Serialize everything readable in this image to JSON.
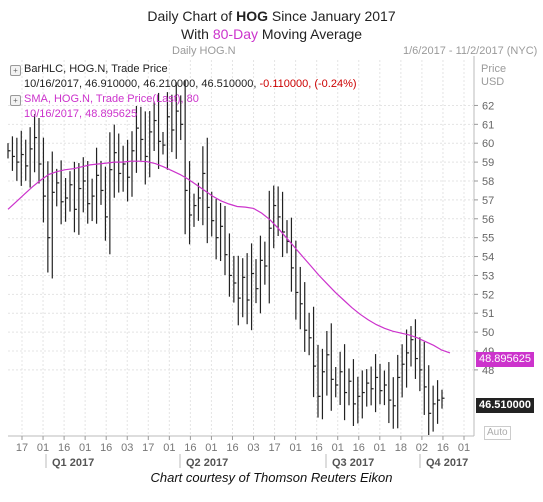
{
  "title": {
    "line1_prefix": "Daily Chart of ",
    "line1_ticker": "HOG",
    "line1_suffix": " Since January 2017",
    "line2_prefix": "With ",
    "line2_highlight": "80-Day",
    "line2_suffix": " Moving Average"
  },
  "header": {
    "left": "Daily HOG.N",
    "right": "1/6/2017 - 11/2/2017 (NYC)"
  },
  "legend": {
    "series1_label": "BarHLC, HOG.N, Trade Price",
    "series1_values_prefix": "10/16/2017, 46.910000, 46.210000, 46.510000, ",
    "series1_change": "-0.110000, (-0.24%)",
    "series2_label": "SMA, HOG.N, Trade Price(Last),  80",
    "series2_values": "10/16/2017, 48.895625"
  },
  "axis_title": {
    "line1": "Price",
    "line2": "USD"
  },
  "tags": {
    "sma_value": "48.895625",
    "last_price": "46.510000",
    "auto_label": "Auto"
  },
  "credit": "Chart courtesy of Thomson Reuters Eikon",
  "colors": {
    "price_bars": "#222222",
    "sma_line": "#cc33cc",
    "grid": "#d8d8d8",
    "negative_change": "#cc0000"
  },
  "chart_data": {
    "type": "line",
    "x_tick_labels": [
      "17",
      "01",
      "16",
      "01",
      "16",
      "03",
      "17",
      "01",
      "16",
      "01",
      "16",
      "03",
      "17",
      "01",
      "16",
      "01",
      "16",
      "01",
      "18",
      "02",
      "16",
      "01"
    ],
    "quarter_labels": [
      "Q1 2017",
      "Q2 2017",
      "Q3 2017",
      "Q4 2017"
    ],
    "y_tick_labels": [
      "48",
      "49",
      "50",
      "51",
      "52",
      "53",
      "54",
      "55",
      "56",
      "57",
      "58",
      "59",
      "60",
      "61",
      "62"
    ],
    "ylim": [
      44.5,
      62.5
    ],
    "grid": true,
    "series": [
      {
        "name": "BarHLC, HOG.N, Trade Price",
        "kind": "hlc_bars",
        "x_range": [
          0,
          434
        ],
        "close": [
          59.6,
          59.3,
          59.0,
          59.4,
          58.8,
          59.7,
          60.3,
          58.9,
          57.2,
          55.0,
          57.4,
          57.9,
          56.9,
          57.1,
          57.8,
          56.5,
          57.6,
          58.0,
          56.8,
          57.2,
          58.3,
          57.5,
          56.1,
          58.6,
          59.5,
          58.4,
          58.9,
          58.2,
          59.6,
          60.8,
          60.2,
          59.3,
          60.6,
          61.2,
          60.1,
          59.9,
          61.4,
          60.7,
          61.7,
          61.0,
          57.5,
          56.2,
          56.7,
          57.1,
          58.4,
          56.6,
          55.9,
          55.0,
          55.6,
          54.1,
          53.0,
          52.6,
          51.8,
          52.9,
          51.7,
          53.1,
          52.3,
          53.8,
          53.5,
          55.5,
          56.7,
          56.1,
          55.3,
          54.8,
          53.4,
          52.1,
          51.5,
          50.1,
          49.7,
          48.2,
          46.6,
          47.9,
          48.8,
          47.5,
          47.2,
          47.9,
          46.8,
          47.4,
          46.2,
          46.6,
          46.8,
          47.3,
          47.0,
          47.6,
          46.9,
          47.2,
          46.4,
          46.1,
          47.6,
          48.3,
          48.9,
          49.6,
          48.6,
          48.0,
          47.1,
          45.7,
          46.2,
          46.4,
          46.5
        ]
      },
      {
        "name": "SMA, HOG.N, Trade Price(Last),  80",
        "kind": "line",
        "x_range": [
          0,
          450
        ],
        "values": [
          56.5,
          56.9,
          57.3,
          57.7,
          58.05,
          58.35,
          58.5,
          58.6,
          58.65,
          58.75,
          58.85,
          58.9,
          58.95,
          59.0,
          59.0,
          59.05,
          59.05,
          59.02,
          58.92,
          58.75,
          58.55,
          58.35,
          58.1,
          57.8,
          57.5,
          57.2,
          56.95,
          56.78,
          56.65,
          56.62,
          56.55,
          56.3,
          55.95,
          55.5,
          55.0,
          54.5,
          54.0,
          53.5,
          53.0,
          52.55,
          52.1,
          51.7,
          51.3,
          50.95,
          50.65,
          50.4,
          50.2,
          50.05,
          49.95,
          49.85,
          49.7,
          49.5,
          49.3,
          49.05,
          48.9
        ]
      }
    ]
  }
}
